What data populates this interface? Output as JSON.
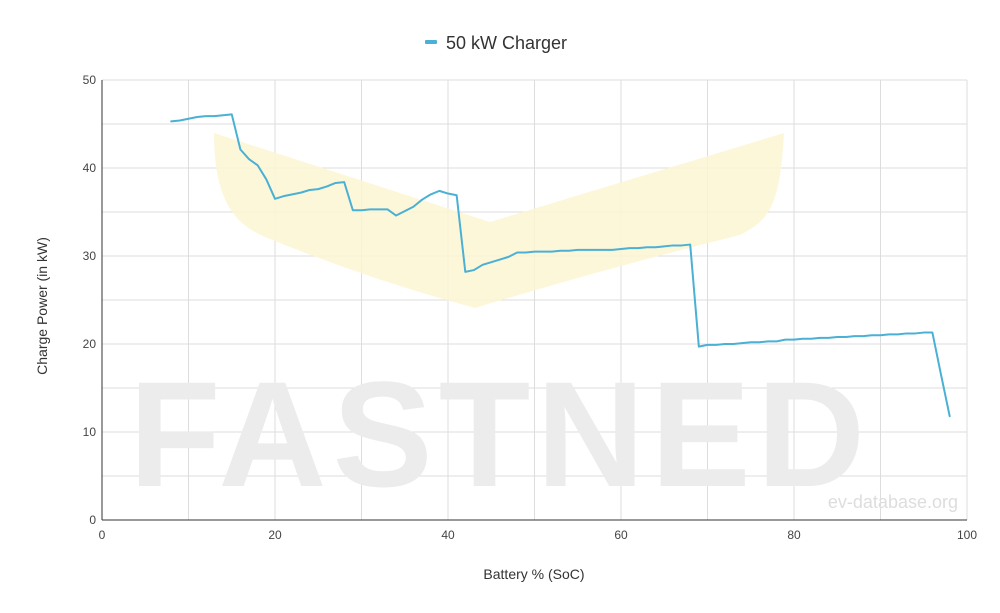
{
  "chart_data": {
    "type": "line",
    "title": "",
    "xlabel": "Battery % (SoC)",
    "ylabel": "Charge Power (in kW)",
    "xlim": [
      0,
      100
    ],
    "ylim": [
      0,
      50
    ],
    "x_ticks": [
      "0",
      "20",
      "40",
      "60",
      "80",
      "100"
    ],
    "y_ticks": [
      "0",
      "10",
      "20",
      "30",
      "40",
      "50"
    ],
    "grid": true,
    "legend_position": "top-center",
    "watermark": "FASTNED",
    "credit": "ev-database.org",
    "band_color": "#fdf6d3",
    "colors": {
      "series": "#4ab0d4",
      "grid": "#dddddd",
      "axis": "#333333"
    },
    "series": [
      {
        "name": "50 kW Charger",
        "x": [
          8,
          9,
          10,
          11,
          12,
          13,
          14,
          15,
          16,
          17,
          18,
          19,
          20,
          21,
          22,
          23,
          24,
          25,
          26,
          27,
          28,
          29,
          30,
          31,
          32,
          33,
          34,
          35,
          36,
          37,
          38,
          39,
          40,
          41,
          42,
          43,
          44,
          45,
          46,
          47,
          48,
          49,
          50,
          51,
          52,
          53,
          54,
          55,
          56,
          57,
          58,
          59,
          60,
          61,
          62,
          63,
          64,
          65,
          66,
          67,
          68,
          69,
          70,
          71,
          72,
          73,
          74,
          75,
          76,
          77,
          78,
          79,
          80,
          81,
          82,
          83,
          84,
          85,
          86,
          87,
          88,
          89,
          90,
          91,
          92,
          93,
          94,
          95,
          96,
          97,
          98
        ],
        "y": [
          45.3,
          45.4,
          45.6,
          45.8,
          45.9,
          45.9,
          46.0,
          46.1,
          42.1,
          41.0,
          40.3,
          38.7,
          36.5,
          36.8,
          37.0,
          37.2,
          37.5,
          37.6,
          37.9,
          38.3,
          38.4,
          35.2,
          35.2,
          35.3,
          35.3,
          35.3,
          34.6,
          35.1,
          35.6,
          36.4,
          37.0,
          37.4,
          37.1,
          36.9,
          28.2,
          28.4,
          29.0,
          29.3,
          29.6,
          29.9,
          30.4,
          30.4,
          30.5,
          30.5,
          30.5,
          30.6,
          30.6,
          30.7,
          30.7,
          30.7,
          30.7,
          30.7,
          30.8,
          30.9,
          30.9,
          31.0,
          31.0,
          31.1,
          31.2,
          31.2,
          31.3,
          19.7,
          19.9,
          19.9,
          20.0,
          20.0,
          20.1,
          20.2,
          20.2,
          20.3,
          20.3,
          20.5,
          20.5,
          20.6,
          20.6,
          20.7,
          20.7,
          20.8,
          20.8,
          20.9,
          20.9,
          21.0,
          21.0,
          21.1,
          21.1,
          21.2,
          21.2,
          21.3,
          21.3,
          16.5,
          11.8
        ]
      }
    ]
  }
}
